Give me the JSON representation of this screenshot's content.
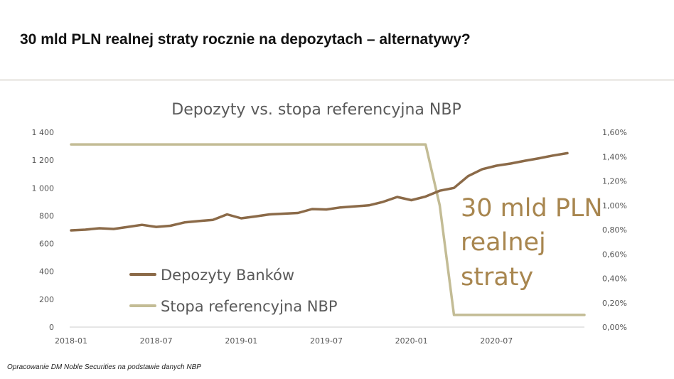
{
  "page": {
    "title": "30 mld PLN realnej straty rocznie na depozytach – alternatywy?",
    "footnote": "Opracowanie DM Noble Securities na podstawie danych NBP"
  },
  "chart_data": {
    "type": "line",
    "title": "Depozyty vs. stopa referencyjna NBP",
    "x_tick_labels": [
      "2018-01",
      "2018-07",
      "2019-01",
      "2019-07",
      "2020-01",
      "2020-07"
    ],
    "y_left": {
      "ticks": [
        "0",
        "200",
        "400",
        "600",
        "800",
        "1 000",
        "1 200",
        "1 400"
      ],
      "ylim": [
        0,
        1400
      ]
    },
    "y_right": {
      "ticks": [
        "0,00%",
        "0,20%",
        "0,40%",
        "0,60%",
        "0,80%",
        "1,00%",
        "1,20%",
        "1,40%",
        "1,60%"
      ],
      "ylim": [
        0,
        1.6
      ]
    },
    "x": [
      "2018-01",
      "2018-02",
      "2018-03",
      "2018-04",
      "2018-05",
      "2018-06",
      "2018-07",
      "2018-08",
      "2018-09",
      "2018-10",
      "2018-11",
      "2018-12",
      "2019-01",
      "2019-02",
      "2019-03",
      "2019-04",
      "2019-05",
      "2019-06",
      "2019-07",
      "2019-08",
      "2019-09",
      "2019-10",
      "2019-11",
      "2019-12",
      "2020-01",
      "2020-02",
      "2020-03",
      "2020-04",
      "2020-05",
      "2020-06",
      "2020-07",
      "2020-08",
      "2020-09",
      "2020-10",
      "2020-11",
      "2020-12"
    ],
    "series": [
      {
        "name": "Depozyty Banków",
        "axis": "left",
        "color": "#8b6a48",
        "values": [
          695,
          700,
          710,
          705,
          720,
          735,
          720,
          728,
          752,
          762,
          770,
          810,
          782,
          795,
          810,
          815,
          820,
          848,
          845,
          860,
          867,
          875,
          900,
          935,
          912,
          938,
          980,
          1000,
          1085,
          1135,
          1160,
          1175,
          1195,
          1213,
          1233,
          1250
        ]
      },
      {
        "name": "Stopa referencyjna NBP",
        "axis": "right",
        "color": "#c3bc95",
        "values": [
          1.5,
          1.5,
          1.5,
          1.5,
          1.5,
          1.5,
          1.5,
          1.5,
          1.5,
          1.5,
          1.5,
          1.5,
          1.5,
          1.5,
          1.5,
          1.5,
          1.5,
          1.5,
          1.5,
          1.5,
          1.5,
          1.5,
          1.5,
          1.5,
          1.5,
          1.5,
          1.0,
          0.1,
          0.1,
          0.1,
          0.1,
          0.1,
          0.1,
          0.1,
          0.1,
          0.1
        ]
      }
    ],
    "annotation": [
      "30 mld PLN",
      "realnej",
      "straty"
    ],
    "annotation_color": "#a8864f",
    "grid": false,
    "legend_position": "bottom-left inside plot"
  }
}
